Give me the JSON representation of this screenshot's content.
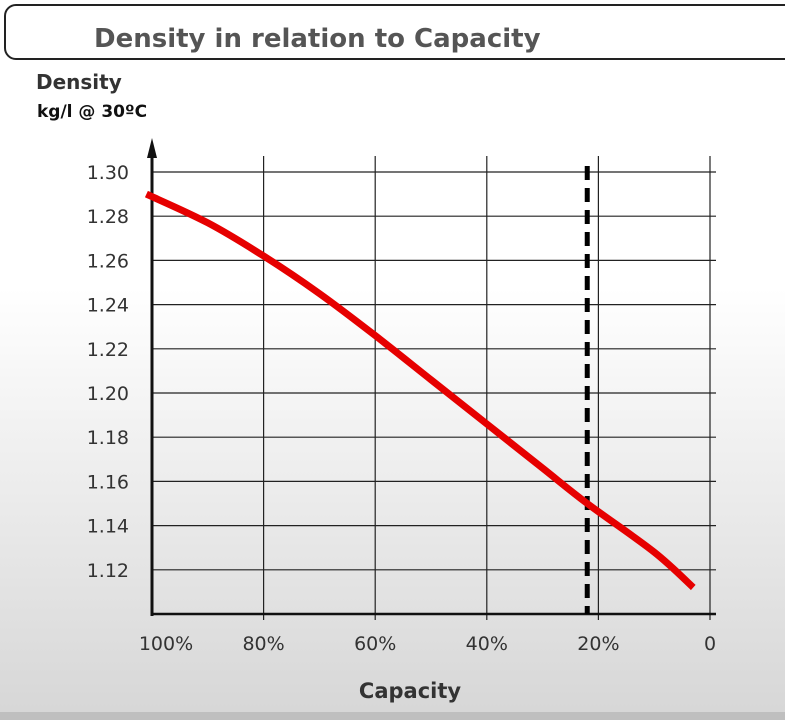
{
  "chart_data": {
    "type": "line",
    "title": "Density in relation to Capacity",
    "ylabel": "Density",
    "ylabel_unit": "kg/l @ 30ºC",
    "xlabel": "Capacity",
    "xlim": [
      100,
      0
    ],
    "ylim": [
      1.1,
      1.3
    ],
    "x_reversed": true,
    "grid": true,
    "x_ticks": [
      100,
      80,
      60,
      40,
      20,
      0
    ],
    "x_tick_labels": [
      "100%",
      "80%",
      "60%",
      "40%",
      "20%",
      "0"
    ],
    "y_ticks": [
      1.12,
      1.14,
      1.16,
      1.18,
      1.2,
      1.22,
      1.24,
      1.26,
      1.28,
      1.3
    ],
    "y_tick_labels": [
      "1.12",
      "1.14",
      "1.16",
      "1.18",
      "1.20",
      "1.22",
      "1.24",
      "1.26",
      "1.28",
      "1.30"
    ],
    "series": [
      {
        "color": "#e60000",
        "x": [
          101,
          90,
          80,
          70,
          60,
          50,
          40,
          30,
          22,
          10,
          3
        ],
        "y": [
          1.29,
          1.277,
          1.262,
          1.245,
          1.226,
          1.206,
          1.186,
          1.166,
          1.15,
          1.128,
          1.112
        ]
      }
    ],
    "reference_line": {
      "x": 22,
      "style": "dashed",
      "color": "#000000"
    }
  }
}
